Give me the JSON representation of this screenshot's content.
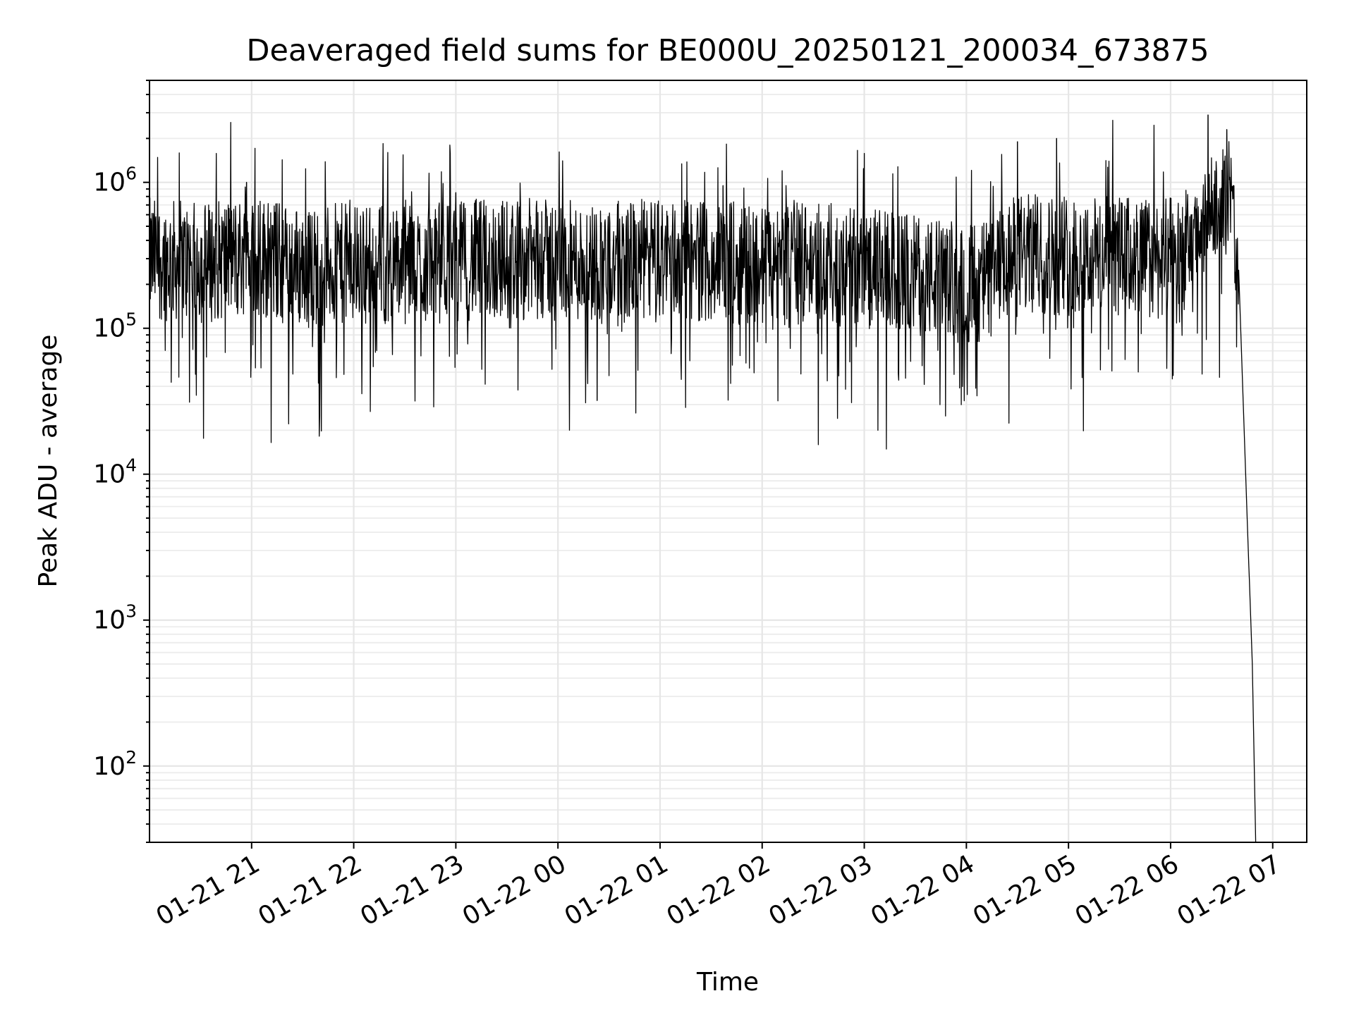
{
  "chart_data": {
    "type": "line",
    "title": "Deaveraged field sums for BE000U_20250121_200034_673875",
    "xlabel": "Time",
    "ylabel": "Peak ADU - average",
    "yscale": "log",
    "ylim": [
      30,
      5000000
    ],
    "xlim": [
      "2025-01-21 20:00",
      "2025-01-22 07:20"
    ],
    "grid": true,
    "x_ticks": [
      {
        "at": "2025-01-21 21:00",
        "label": "01-21 21"
      },
      {
        "at": "2025-01-21 22:00",
        "label": "01-21 22"
      },
      {
        "at": "2025-01-21 23:00",
        "label": "01-21 23"
      },
      {
        "at": "2025-01-22 00:00",
        "label": "01-22 00"
      },
      {
        "at": "2025-01-22 01:00",
        "label": "01-22 01"
      },
      {
        "at": "2025-01-22 02:00",
        "label": "01-22 02"
      },
      {
        "at": "2025-01-22 03:00",
        "label": "01-22 03"
      },
      {
        "at": "2025-01-22 04:00",
        "label": "01-22 04"
      },
      {
        "at": "2025-01-22 05:00",
        "label": "01-22 05"
      },
      {
        "at": "2025-01-22 06:00",
        "label": "01-22 06"
      },
      {
        "at": "2025-01-22 07:00",
        "label": "01-22 07"
      }
    ],
    "y_ticks": [
      {
        "value": 100,
        "base": "10",
        "exp": "2"
      },
      {
        "value": 1000,
        "base": "10",
        "exp": "3"
      },
      {
        "value": 10000,
        "base": "10",
        "exp": "4"
      },
      {
        "value": 100000,
        "base": "10",
        "exp": "5"
      },
      {
        "value": 1000000,
        "base": "10",
        "exp": "6"
      }
    ],
    "line_color": "#000000",
    "series": [
      {
        "x": [
          "2025-01-21 20:00",
          "2025-01-21 20:30",
          "2025-01-21 21:00",
          "2025-01-21 21:30",
          "2025-01-21 22:00",
          "2025-01-21 22:30",
          "2025-01-21 23:00",
          "2025-01-21 23:30",
          "2025-01-22 00:00",
          "2025-01-22 00:30",
          "2025-01-22 01:00",
          "2025-01-22 01:30",
          "2025-01-22 02:00",
          "2025-01-22 02:30",
          "2025-01-22 03:00",
          "2025-01-22 03:30",
          "2025-01-22 04:00",
          "2025-01-22 04:15",
          "2025-01-22 04:30",
          "2025-01-22 05:00",
          "2025-01-22 05:30",
          "2025-01-22 06:00",
          "2025-01-22 06:15",
          "2025-01-22 06:25",
          "2025-01-22 06:35",
          "2025-01-22 06:40",
          "2025-01-22 06:45",
          "2025-01-22 06:48",
          "2025-01-22 06:50"
        ],
        "values": [
          300000,
          280000,
          320000,
          260000,
          280000,
          270000,
          290000,
          300000,
          290000,
          280000,
          300000,
          290000,
          270000,
          280000,
          260000,
          230000,
          200000,
          220000,
          320000,
          320000,
          310000,
          300000,
          380000,
          700000,
          900000,
          250000,
          5000,
          500,
          30
        ],
        "peaks": [
          {
            "x": "2025-01-21 20:57",
            "y": 1000000
          },
          {
            "x": "2025-01-21 21:40",
            "y": 25000
          },
          {
            "x": "2025-01-21 23:00",
            "y": 850000
          },
          {
            "x": "2025-01-22 00:23",
            "y": 32000
          },
          {
            "x": "2025-01-22 01:37",
            "y": 950000
          },
          {
            "x": "2025-01-22 04:30",
            "y": 1900000
          },
          {
            "x": "2025-01-22 04:53",
            "y": 2000000
          },
          {
            "x": "2025-01-22 06:22",
            "y": 2900000
          },
          {
            "x": "2025-01-22 06:33",
            "y": 2300000
          }
        ]
      }
    ]
  }
}
